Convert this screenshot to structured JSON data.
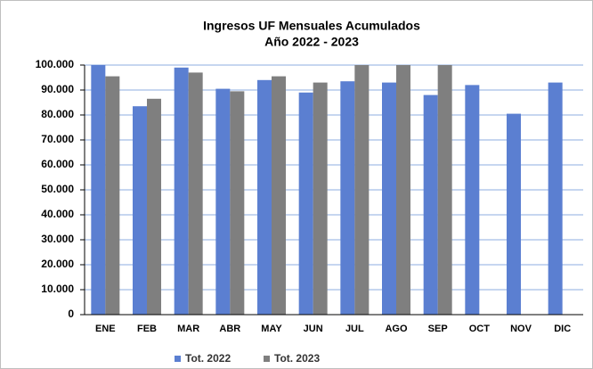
{
  "chart_data": {
    "type": "bar",
    "title": "Ingresos UF Mensuales Acumulados",
    "subtitle": "Año 2022 - 2023",
    "categories": [
      "ENE",
      "FEB",
      "MAR",
      "ABR",
      "MAY",
      "JUN",
      "JUL",
      "AGO",
      "SEP",
      "OCT",
      "NOV",
      "DIC"
    ],
    "series": [
      {
        "name": "Tot. 2022",
        "color": "#5b7fd1",
        "values": [
          100000,
          83500,
          99000,
          90500,
          94000,
          89000,
          93500,
          93000,
          88000,
          92000,
          80500,
          93000
        ]
      },
      {
        "name": "Tot. 2023",
        "color": "#7f7f7f",
        "values": [
          95500,
          86500,
          97000,
          89500,
          95500,
          93000,
          100000,
          100000,
          100000,
          null,
          null,
          null
        ]
      }
    ],
    "ylim": [
      0,
      100000
    ],
    "yticks": [
      0,
      {
        "value": 10000,
        "label": "10.000"
      },
      {
        "value": 20000,
        "label": "20.000"
      },
      {
        "value": 30000,
        "label": "30.000"
      },
      {
        "value": 40000,
        "label": "40.000"
      },
      {
        "value": 50000,
        "label": "50.000"
      },
      {
        "value": 60000,
        "label": "60.000"
      },
      {
        "value": 70000,
        "label": "70.000"
      },
      {
        "value": 80000,
        "label": "80.000"
      },
      {
        "value": 90000,
        "label": "90.000"
      },
      {
        "value": 100000,
        "label": "100.000"
      }
    ],
    "grid": true,
    "legend": "bottom"
  }
}
